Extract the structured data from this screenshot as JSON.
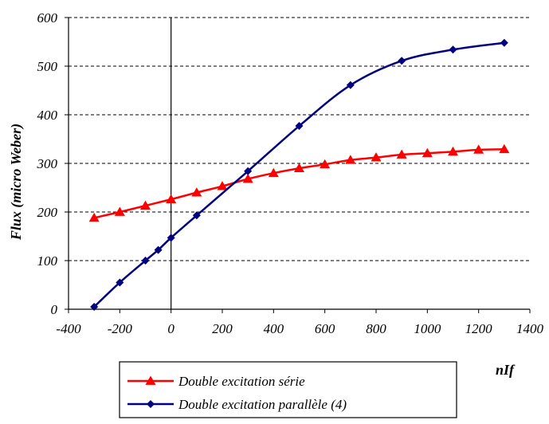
{
  "chart_data": {
    "type": "line",
    "xlabel": "nIf",
    "ylabel": "Flux (micro Weber)",
    "xlim": [
      -400,
      1400
    ],
    "ylim": [
      0,
      600
    ],
    "x_ticks": [
      "-400",
      "-200",
      "0",
      "200",
      "400",
      "600",
      "800",
      "1000",
      "1200",
      "1400"
    ],
    "y_ticks": [
      "0",
      "100",
      "200",
      "300",
      "400",
      "500",
      "600"
    ],
    "grid": "horizontal dashed",
    "legend_position": "bottom",
    "series": [
      {
        "name": "Double excitation série",
        "color": "#ff0000",
        "marker": "triangle",
        "x": [
          -300,
          -200,
          -100,
          0,
          100,
          200,
          300,
          400,
          500,
          600,
          700,
          800,
          900,
          1000,
          1100,
          1200,
          1300
        ],
        "y": [
          188,
          200,
          213,
          226,
          240,
          253,
          268,
          280,
          290,
          298,
          307,
          312,
          318,
          321,
          324,
          328,
          329
        ]
      },
      {
        "name": "Double excitation parallèle (4)",
        "color": "#000080",
        "marker": "diamond",
        "x": [
          -300,
          -200,
          -100,
          -50,
          0,
          100,
          300,
          500,
          700,
          900,
          1100,
          1300
        ],
        "y": [
          5,
          55,
          100,
          122,
          147,
          193,
          284,
          377,
          461,
          511,
          534,
          548
        ]
      }
    ]
  }
}
